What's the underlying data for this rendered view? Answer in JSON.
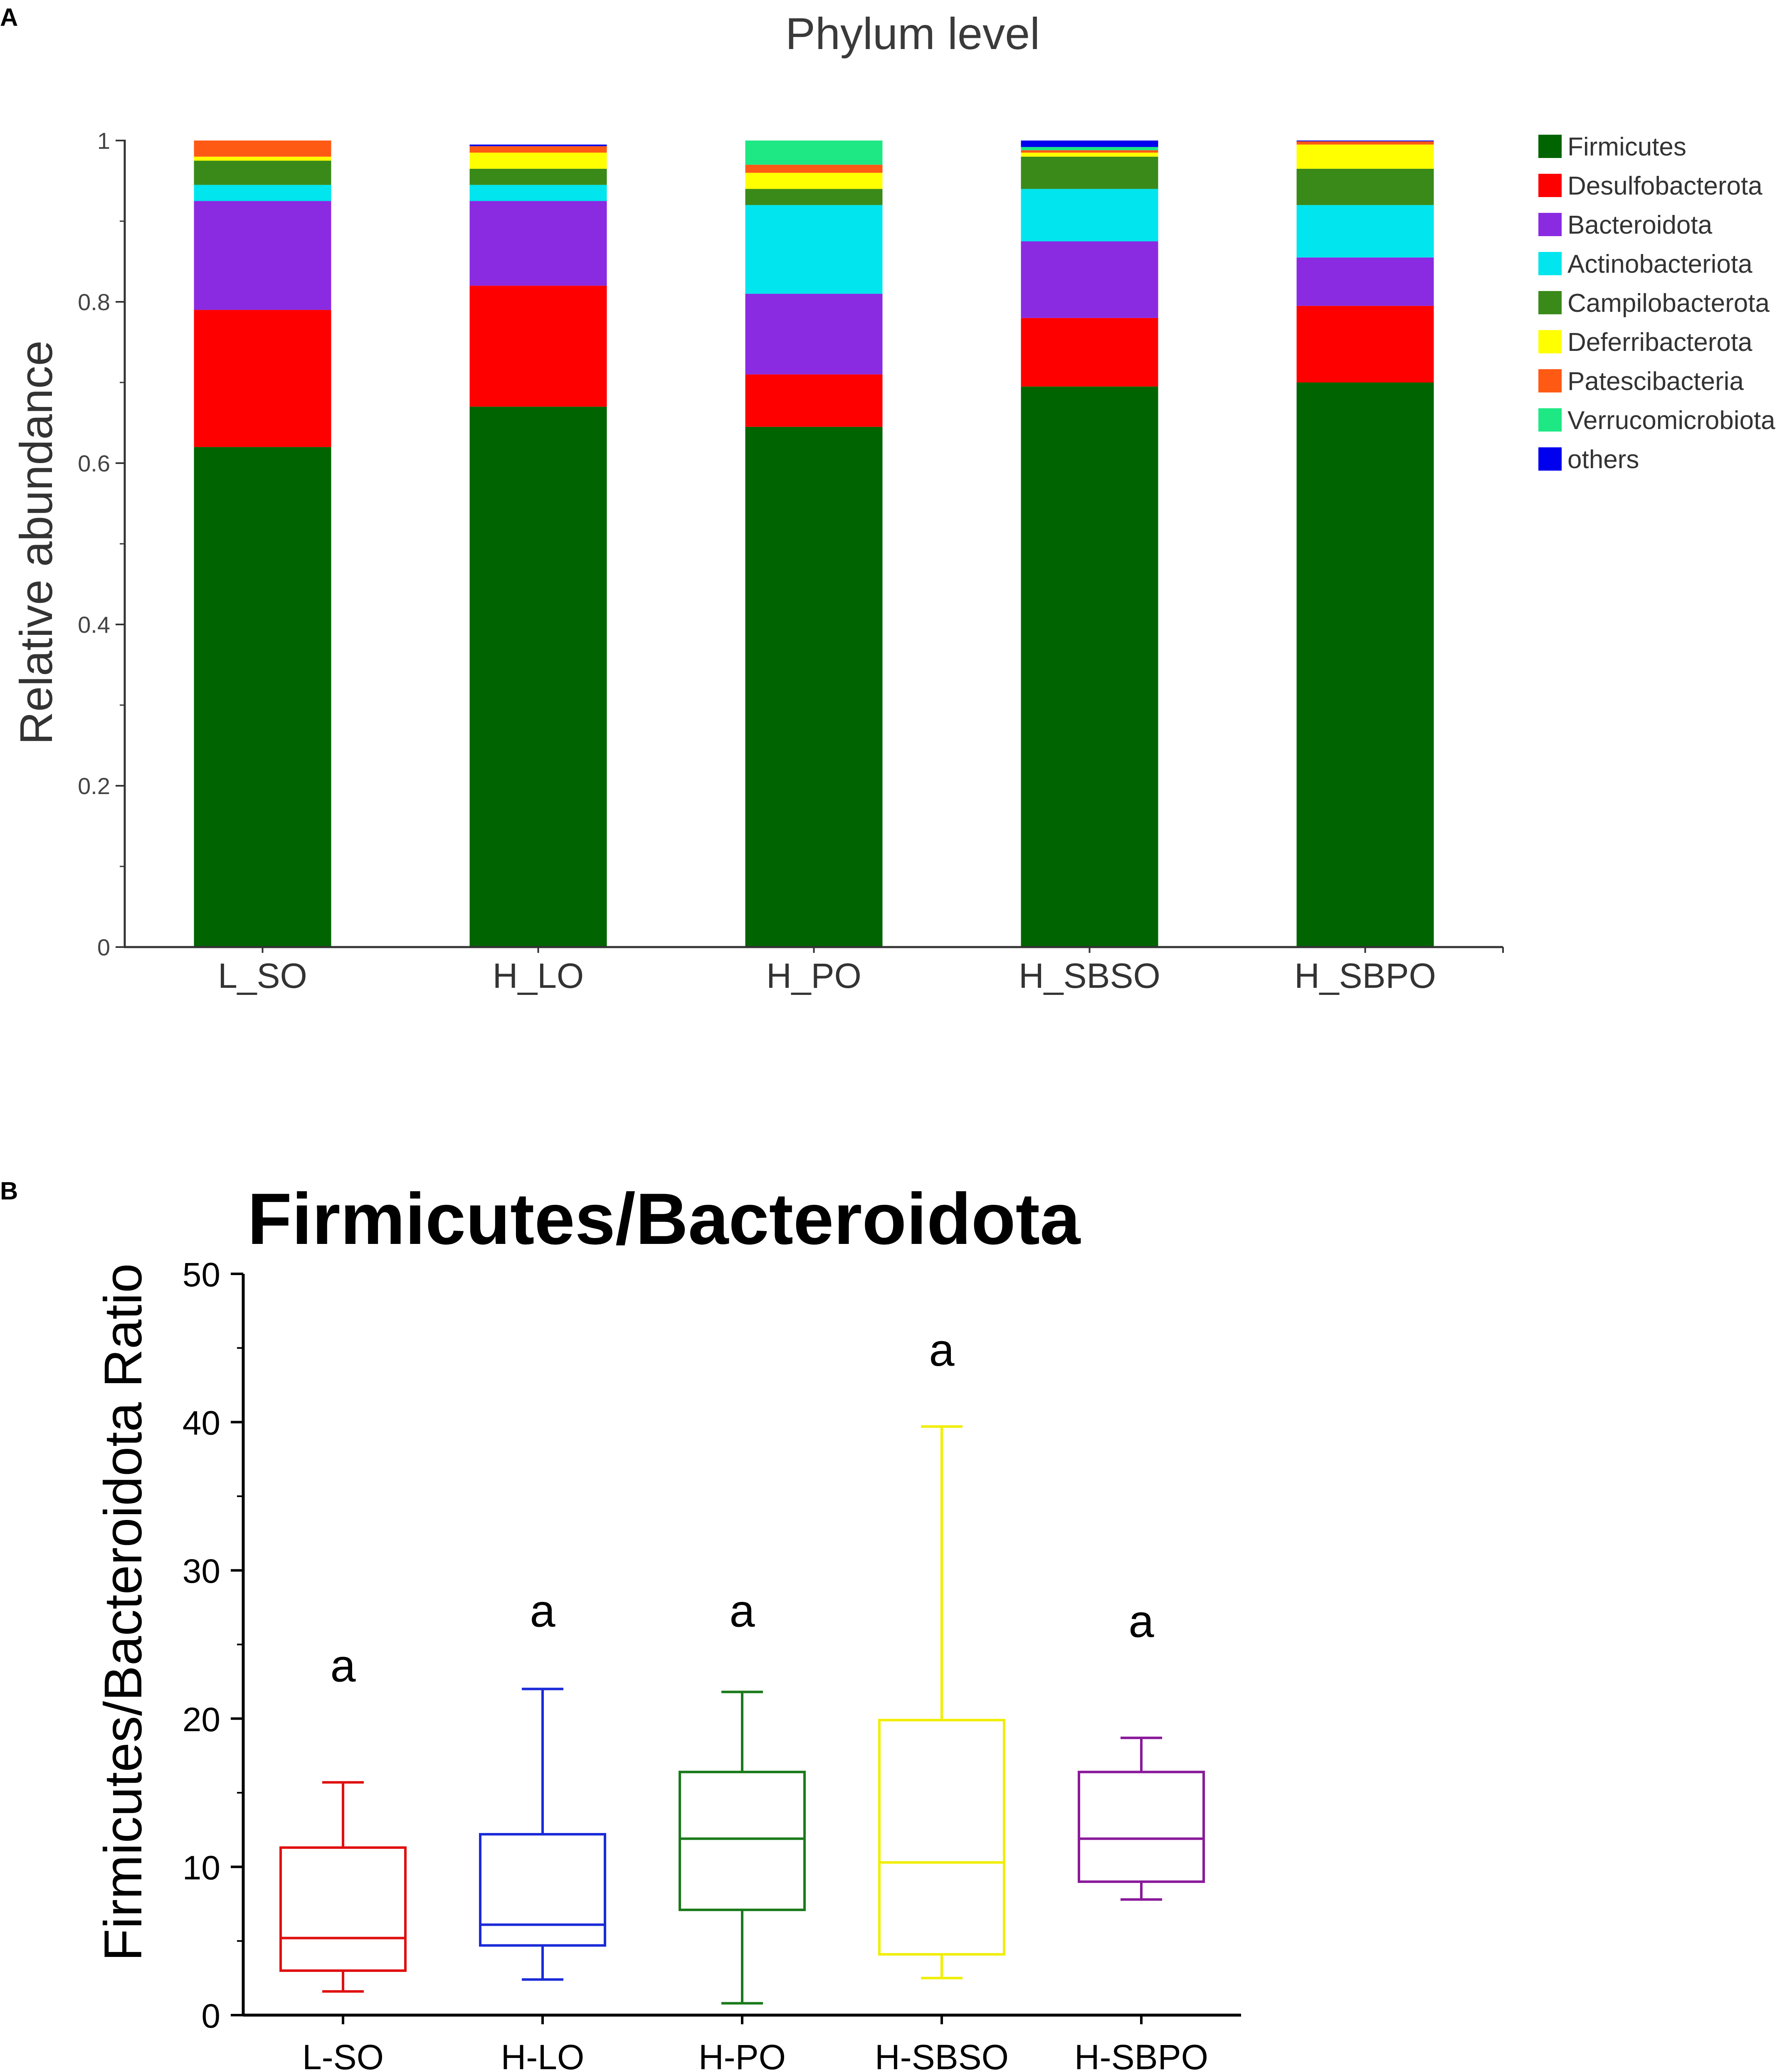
{
  "chart_data": [
    {
      "panel_label": "A",
      "type": "bar",
      "stacked": true,
      "title": "Phylum level",
      "xlabel": "",
      "ylabel": "Relative abundance",
      "ylim": [
        0,
        1
      ],
      "yticks": [
        "0",
        "0.2",
        "0.4",
        "0.6",
        "0.8",
        "1"
      ],
      "categories": [
        "L_SO",
        "H_LO",
        "H_PO",
        "H_SBSO",
        "H_SBPO"
      ],
      "legend_position": "right",
      "series": [
        {
          "name": "Firmicutes",
          "color": "#006400",
          "values": [
            0.62,
            0.67,
            0.645,
            0.695,
            0.7
          ]
        },
        {
          "name": "Desulfobacterota",
          "color": "#ff0000",
          "values": [
            0.17,
            0.15,
            0.065,
            0.085,
            0.095
          ]
        },
        {
          "name": "Bacteroidota",
          "color": "#8a2be2",
          "values": [
            0.135,
            0.105,
            0.1,
            0.095,
            0.06
          ]
        },
        {
          "name": "Actinobacteriota",
          "color": "#00e5ee",
          "values": [
            0.02,
            0.02,
            0.11,
            0.065,
            0.065
          ]
        },
        {
          "name": "Campilobacterota",
          "color": "#3a8a1a",
          "values": [
            0.03,
            0.02,
            0.02,
            0.04,
            0.045
          ]
        },
        {
          "name": "Deferribacterota",
          "color": "#ffff00",
          "values": [
            0.005,
            0.02,
            0.02,
            0.005,
            0.03
          ]
        },
        {
          "name": "Patescibacteria",
          "color": "#ff5a14",
          "values": [
            0.02,
            0.008,
            0.01,
            0.003,
            0.004
          ]
        },
        {
          "name": "Verrucomicrobiota",
          "color": "#1ee884",
          "values": [
            0.0,
            0.0,
            0.03,
            0.004,
            0.0
          ]
        },
        {
          "name": "others",
          "color": "#0000ee",
          "values": [
            0.0,
            0.002,
            0.0,
            0.008,
            0.001
          ]
        }
      ]
    },
    {
      "panel_label": "B",
      "type": "box",
      "title": "Firmicutes/Bacteroidota",
      "xlabel": "",
      "ylabel": "Firmicutes/Bacteroidota Ratio",
      "ylim": [
        0,
        50
      ],
      "yticks": [
        "0",
        "10",
        "20",
        "30",
        "40",
        "50"
      ],
      "categories": [
        "L-SO",
        "H-LO",
        "H-PO",
        "H-SBSO",
        "H-SBPO"
      ],
      "boxes": [
        {
          "name": "L-SO",
          "color": "#e01010",
          "min": 1.6,
          "q1": 3.0,
          "median": 5.2,
          "q3": 11.3,
          "max": 15.7,
          "significance": "a",
          "sig_at": 22.5
        },
        {
          "name": "H-LO",
          "color": "#1a2ad8",
          "min": 2.4,
          "q1": 4.7,
          "median": 6.1,
          "q3": 12.2,
          "max": 22.0,
          "significance": "a",
          "sig_at": 26.2
        },
        {
          "name": "H-PO",
          "color": "#1a7a1a",
          "min": 0.8,
          "q1": 7.1,
          "median": 11.9,
          "q3": 16.4,
          "max": 21.8,
          "significance": "a",
          "sig_at": 26.2
        },
        {
          "name": "H-SBSO",
          "color": "#f0ee00",
          "min": 2.5,
          "q1": 4.1,
          "median": 10.3,
          "q3": 19.9,
          "max": 39.7,
          "significance": "a",
          "sig_at": 43.8
        },
        {
          "name": "H-SBPO",
          "color": "#8a1a9a",
          "min": 7.8,
          "q1": 9.0,
          "median": 11.9,
          "q3": 16.4,
          "max": 18.7,
          "significance": "a",
          "sig_at": 25.5
        }
      ]
    }
  ]
}
